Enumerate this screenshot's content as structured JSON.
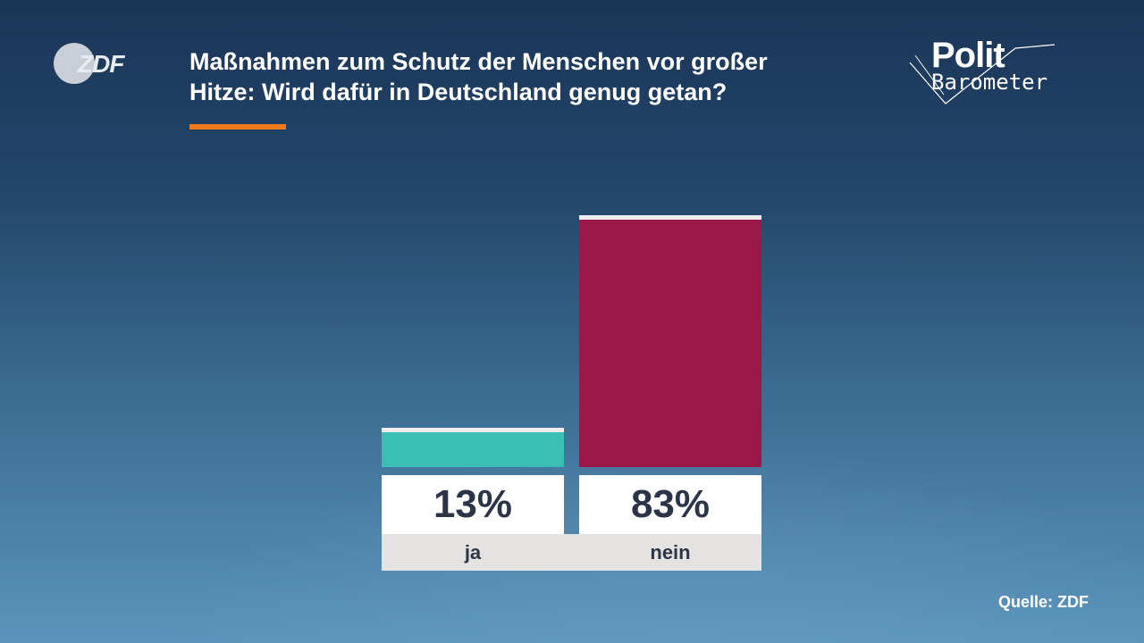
{
  "header": {
    "logo_text": "ZDF",
    "title_line1": "Maßnahmen zum Schutz der Menschen vor großer",
    "title_line2": "Hitze: Wird dafür in Deutschland genug getan?",
    "brand_line1": "Polit",
    "brand_line2": "Barometer"
  },
  "footer": {
    "source": "Quelle: ZDF"
  },
  "colors": {
    "accent": "#f07a1a",
    "ja": "#3bbfb4",
    "nein": "#9a1746",
    "text_dark": "#2c3548"
  },
  "chart_data": {
    "type": "bar",
    "title": "Maßnahmen zum Schutz der Menschen vor großer Hitze: Wird dafür in Deutschland genug getan?",
    "categories": [
      "ja",
      "nein"
    ],
    "values": [
      13,
      83
    ],
    "value_labels": [
      "13%",
      "83%"
    ],
    "unit": "%",
    "ylim": [
      0,
      100
    ],
    "grid": false,
    "legend": "none"
  }
}
